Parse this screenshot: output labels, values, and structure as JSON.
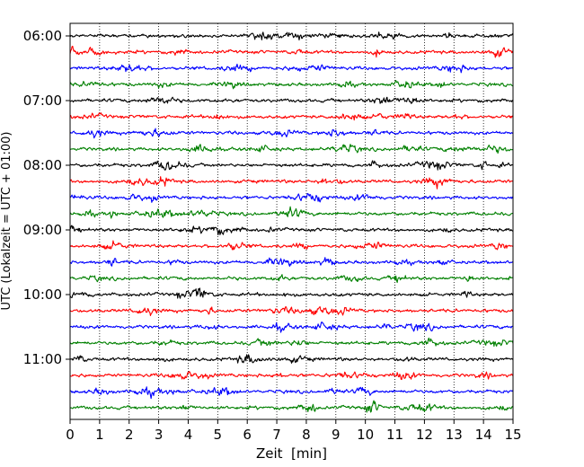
{
  "chart_data": {
    "type": "line",
    "xlabel": "Zeit  [min]",
    "ylabel": "UTC (Lokalzeit = UTC + 01:00)",
    "xlim": [
      0,
      15
    ],
    "x_ticks": [
      0,
      1,
      2,
      3,
      4,
      5,
      6,
      7,
      8,
      9,
      10,
      11,
      12,
      13,
      14,
      15
    ],
    "x_tick_labels": [
      "0",
      "1",
      "2",
      "3",
      "4",
      "5",
      "6",
      "7",
      "8",
      "9",
      "10",
      "11",
      "12",
      "13",
      "14",
      "15"
    ],
    "y_tick_labels": [
      "06:00",
      "07:00",
      "08:00",
      "09:00",
      "10:00",
      "11:00"
    ],
    "y_tick_hours": [
      6,
      7,
      8,
      9,
      10,
      11
    ],
    "grid": "vertical dotted",
    "trace_interval_minutes": 15,
    "trace_colors": [
      "#000000",
      "#ff0000",
      "#0000ff",
      "#008000"
    ],
    "series": [
      {
        "start": "06:00"
      },
      {
        "start": "06:15"
      },
      {
        "start": "06:30"
      },
      {
        "start": "06:45"
      },
      {
        "start": "07:00"
      },
      {
        "start": "07:15"
      },
      {
        "start": "07:30"
      },
      {
        "start": "07:45"
      },
      {
        "start": "08:00"
      },
      {
        "start": "08:15"
      },
      {
        "start": "08:30"
      },
      {
        "start": "08:45"
      },
      {
        "start": "09:00"
      },
      {
        "start": "09:15"
      },
      {
        "start": "09:30"
      },
      {
        "start": "09:45"
      },
      {
        "start": "10:00"
      },
      {
        "start": "10:15"
      },
      {
        "start": "10:30"
      },
      {
        "start": "10:45"
      },
      {
        "start": "11:00"
      },
      {
        "start": "11:15"
      },
      {
        "start": "11:30"
      },
      {
        "start": "11:45"
      }
    ]
  }
}
